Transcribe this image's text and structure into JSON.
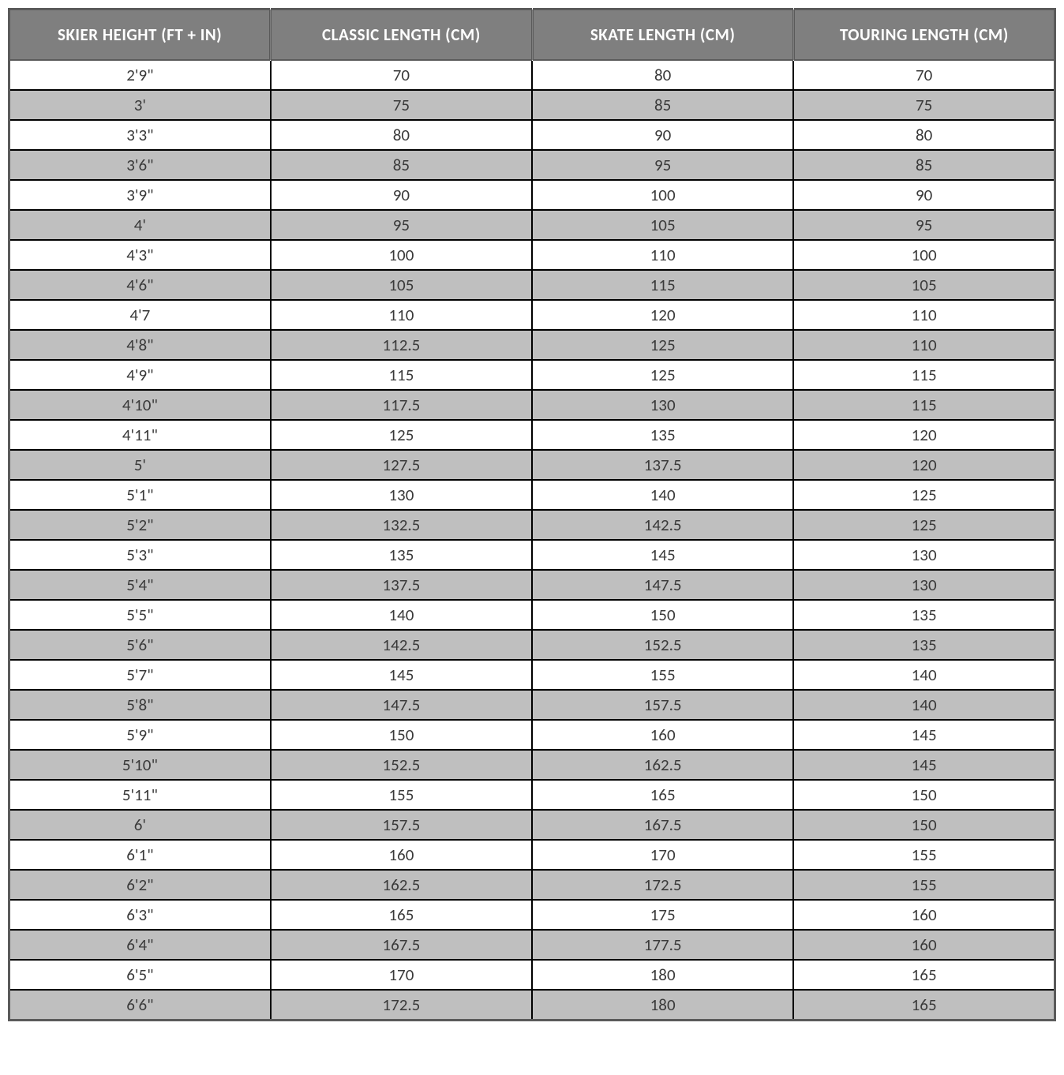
{
  "table": {
    "columns": [
      "SKIER HEIGHT (FT + IN)",
      "CLASSIC LENGTH (CM)",
      "SKATE LENGTH (CM)",
      "TOURING LENGTH (CM)"
    ],
    "column_widths_pct": [
      25,
      25,
      25,
      25
    ],
    "header_bg": "#7f7f7f",
    "header_text_color": "#ffffff",
    "header_fontsize_pt": 16,
    "body_fontsize_pt": 16,
    "body_text_color": "#3a3a3a",
    "row_bg_odd": "#ffffff",
    "row_bg_even": "#bfbfbf",
    "border_color": "#000000",
    "outer_border_color": "#5a5a5a",
    "rows": [
      [
        "2'9\"",
        "70",
        "80",
        "70"
      ],
      [
        "3'",
        "75",
        "85",
        "75"
      ],
      [
        "3'3\"",
        "80",
        "90",
        "80"
      ],
      [
        "3'6\"",
        "85",
        "95",
        "85"
      ],
      [
        "3'9\"",
        "90",
        "100",
        "90"
      ],
      [
        "4'",
        "95",
        "105",
        "95"
      ],
      [
        "4'3\"",
        "100",
        "110",
        "100"
      ],
      [
        "4'6\"",
        "105",
        "115",
        "105"
      ],
      [
        "4'7",
        "110",
        "120",
        "110"
      ],
      [
        "4'8\"",
        "112.5",
        "125",
        "110"
      ],
      [
        "4'9\"",
        "115",
        "125",
        "115"
      ],
      [
        "4'10\"",
        "117.5",
        "130",
        "115"
      ],
      [
        "4'11\"",
        "125",
        "135",
        "120"
      ],
      [
        "5'",
        "127.5",
        "137.5",
        "120"
      ],
      [
        "5'1\"",
        "130",
        "140",
        "125"
      ],
      [
        "5'2\"",
        "132.5",
        "142.5",
        "125"
      ],
      [
        "5'3\"",
        "135",
        "145",
        "130"
      ],
      [
        "5'4\"",
        "137.5",
        "147.5",
        "130"
      ],
      [
        "5'5\"",
        "140",
        "150",
        "135"
      ],
      [
        "5'6\"",
        "142.5",
        "152.5",
        "135"
      ],
      [
        "5'7\"",
        "145",
        "155",
        "140"
      ],
      [
        "5'8\"",
        "147.5",
        "157.5",
        "140"
      ],
      [
        "5'9\"",
        "150",
        "160",
        "145"
      ],
      [
        "5'10\"",
        "152.5",
        "162.5",
        "145"
      ],
      [
        "5'11\"",
        "155",
        "165",
        "150"
      ],
      [
        "6'",
        "157.5",
        "167.5",
        "150"
      ],
      [
        "6'1\"",
        "160",
        "170",
        "155"
      ],
      [
        "6'2\"",
        "162.5",
        "172.5",
        "155"
      ],
      [
        "6'3\"",
        "165",
        "175",
        "160"
      ],
      [
        "6'4\"",
        "167.5",
        "177.5",
        "160"
      ],
      [
        "6'5\"",
        "170",
        "180",
        "165"
      ],
      [
        "6'6\"",
        "172.5",
        "180",
        "165"
      ]
    ]
  }
}
